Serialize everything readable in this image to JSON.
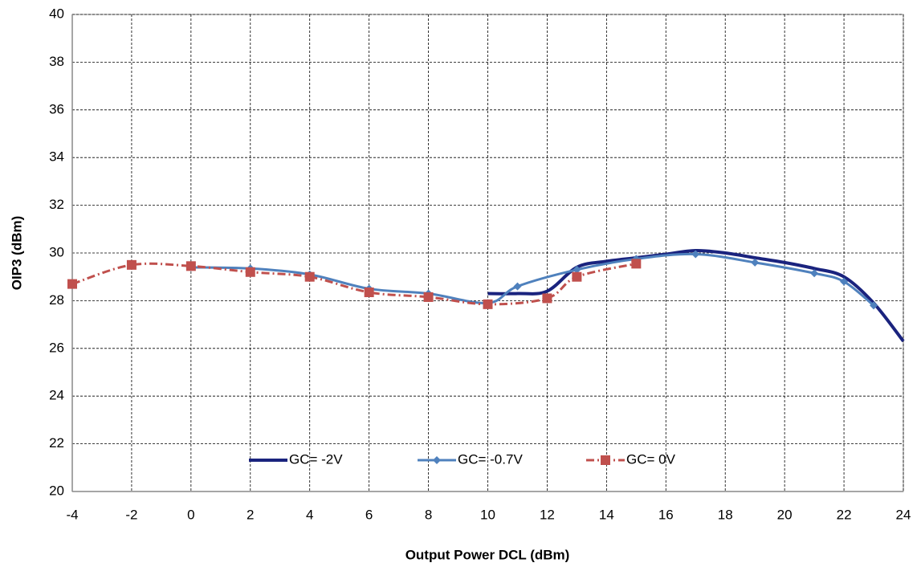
{
  "chart_data": {
    "type": "line",
    "xlabel": "Output Power DCL (dBm)",
    "ylabel": "OIP3  (dBm)",
    "xlim": [
      -4,
      24
    ],
    "xticks": [
      -4,
      -2,
      0,
      2,
      4,
      6,
      8,
      10,
      12,
      14,
      16,
      18,
      20,
      22,
      24
    ],
    "ylim": [
      20,
      40
    ],
    "yticks": [
      20,
      22,
      24,
      26,
      28,
      30,
      32,
      34,
      36,
      38,
      40
    ],
    "grid": true,
    "series": [
      {
        "name": "GC= -2V",
        "color": "#1a237e",
        "marker": "none",
        "dash": "solid",
        "x": [
          10,
          11,
          12,
          13,
          14,
          15,
          16,
          17,
          18,
          19,
          20,
          21,
          22,
          23,
          24
        ],
        "values": [
          28.3,
          28.3,
          28.4,
          29.4,
          29.65,
          29.8,
          29.95,
          30.1,
          30.0,
          29.8,
          29.6,
          29.35,
          29.0,
          27.9,
          26.3
        ]
      },
      {
        "name": "GC= -0.7V",
        "color": "#4f81bd",
        "marker": "diamond",
        "dash": "solid",
        "x": [
          0,
          2,
          4,
          6,
          8,
          10,
          11,
          13,
          15,
          17,
          19,
          21,
          22,
          23
        ],
        "values": [
          29.4,
          29.35,
          29.1,
          28.5,
          28.3,
          27.9,
          28.6,
          29.3,
          29.75,
          29.95,
          29.6,
          29.15,
          28.8,
          27.8
        ]
      },
      {
        "name": "GC= 0V",
        "color": "#c0504d",
        "marker": "square",
        "dash": "dashdot",
        "x": [
          -4,
          -2,
          0,
          2,
          4,
          6,
          8,
          10,
          12,
          13,
          15
        ],
        "values": [
          28.7,
          29.5,
          29.45,
          29.2,
          29.0,
          28.35,
          28.15,
          27.85,
          28.1,
          29.0,
          29.55
        ]
      }
    ]
  }
}
